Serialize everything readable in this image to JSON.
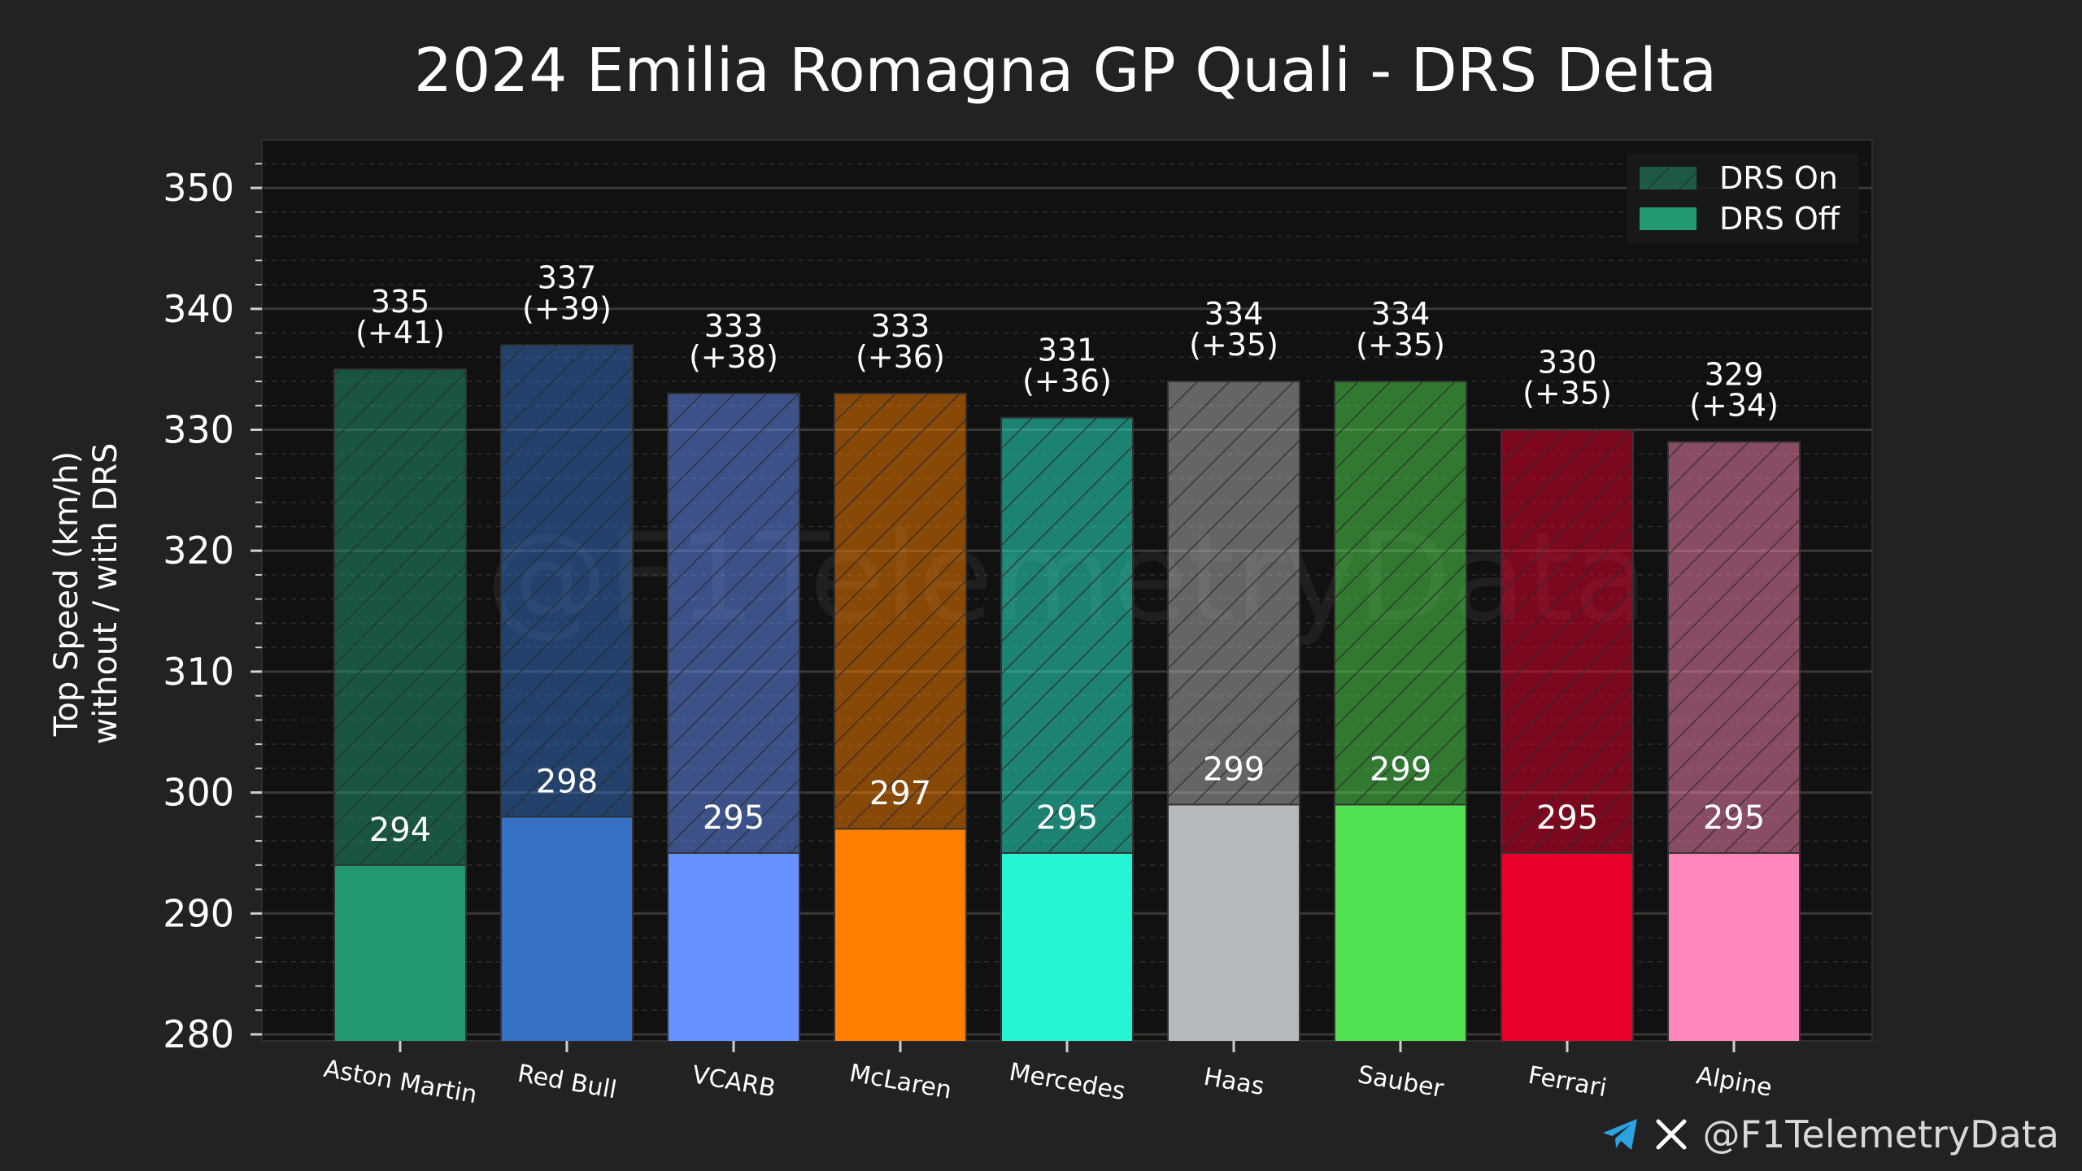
{
  "footer": {
    "handle": "@F1TelemetryData",
    "icons": [
      "telegram-icon",
      "x-icon"
    ]
  },
  "watermark": "@F1TelemetryData",
  "colors": {
    "background": "#222222",
    "plot_background": "#111111",
    "text": "#ffffff",
    "grid_major": "#3a3a3a",
    "grid_minor": "#2c2c2c"
  },
  "chart_data": {
    "type": "bar",
    "title": "2024 Emilia Romagna GP Quali - DRS Delta",
    "ylabel": "Top Speed (km/h)\nwithout / with DRS",
    "xlabel": "",
    "ylim": [
      280,
      354
    ],
    "yticks": [
      280,
      290,
      300,
      310,
      320,
      330,
      340,
      350
    ],
    "grid": true,
    "legend_position": "top-right",
    "categories": [
      "Aston Martin",
      "Red Bull",
      "VCARB",
      "McLaren",
      "Mercedes",
      "Haas",
      "Sauber",
      "Ferrari",
      "Alpine"
    ],
    "colors": [
      "#229971",
      "#3671c6",
      "#6692ff",
      "#ff8000",
      "#27f4d2",
      "#b6babd",
      "#52e252",
      "#e8002d",
      "#ff87bc"
    ],
    "series": [
      {
        "name": "DRS On",
        "values": [
          335,
          337,
          333,
          333,
          331,
          334,
          334,
          330,
          329
        ],
        "labels": [
          "335\n(+41)",
          "337\n(+39)",
          "333\n(+38)",
          "333\n(+36)",
          "331\n(+36)",
          "334\n(+35)",
          "334\n(+35)",
          "330\n(+35)",
          "329\n(+34)"
        ]
      },
      {
        "name": "DRS Off",
        "values": [
          294,
          298,
          295,
          297,
          295,
          299,
          299,
          295,
          295
        ],
        "labels": [
          "294",
          "298",
          "295",
          "297",
          "295",
          "299",
          "299",
          "295",
          "295"
        ]
      }
    ]
  }
}
